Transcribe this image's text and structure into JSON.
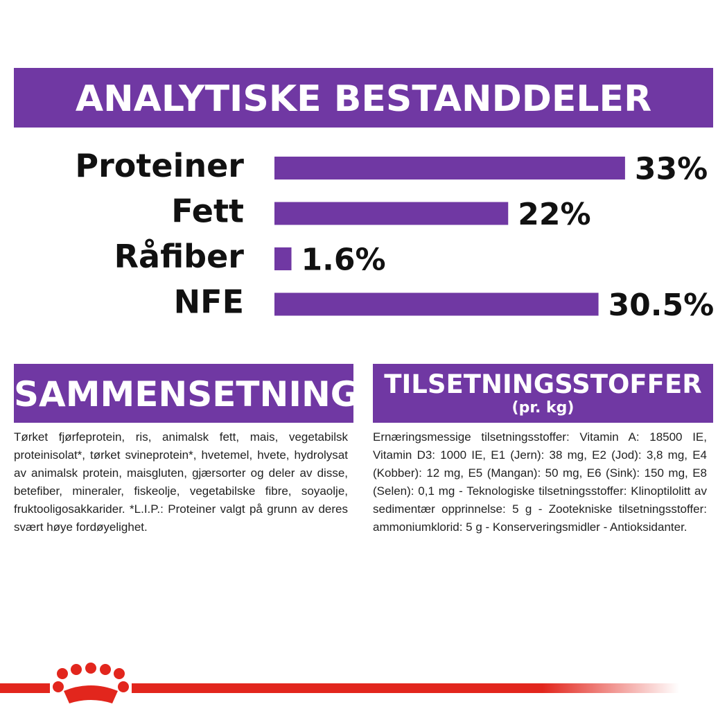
{
  "header": {
    "title": "ANALYTISKE BESTANDDELER"
  },
  "chart_data": {
    "type": "bar",
    "orientation": "horizontal",
    "categories": [
      "Proteiner",
      "Fett",
      "Råfiber",
      "NFE"
    ],
    "values": [
      33,
      22,
      1.6,
      30.5
    ],
    "value_labels": [
      "33%",
      "22%",
      "1.6%",
      "30.5%"
    ],
    "color": "#7038a3"
  },
  "composition": {
    "title": "SAMMENSETNING",
    "text": "Tørket fjørfeprotein, ris, animalsk fett, mais, vegetabilsk proteinisolat*, tørket svineprotein*, hvetemel, hvete, hydrolysat av animalsk protein, maisgluten, gjærsorter og deler av disse, betefiber, mineraler, fiskeolje, vegetabilske fibre, soyaolje, fruktooligosakkarider. *L.I.P.: Proteiner valgt på grunn av deres svært høye fordøyelighet."
  },
  "additives": {
    "title": "TILSETNINGSSTOFFER",
    "subtitle": "(pr. kg)",
    "text": "Ernæringsmessige tilsetningsstoffer: Vitamin A: 18500 IE, Vitamin D3: 1000 IE, E1 (Jern): 38 mg, E2 (Jod): 3,8 mg, E4 (Kobber): 12 mg, E5 (Mangan): 50 mg, E6 (Sink): 150 mg, E8 (Selen): 0,1 mg - Teknologiske tilsetningsstoffer: Klinoptilolitt av sedimentær opprinnelse: 5 g - Zootekniske tilsetningsstoffer: ammoniumklorid: 5 g - Konserveringsmidler - Antioksidanter."
  }
}
